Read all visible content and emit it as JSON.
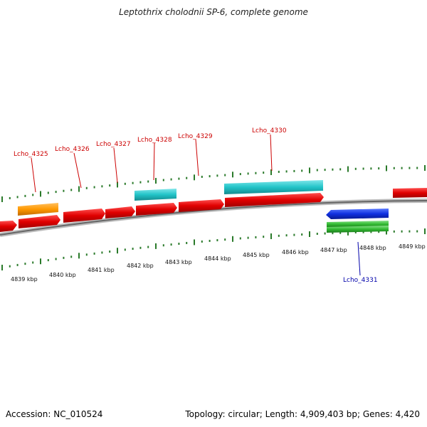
{
  "title": "Leptothrix cholodnii SP-6, complete genome",
  "footer": {
    "accession": "Accession: NC_010524",
    "summary": "Topology: circular; Length: 4,909,403 bp; Genes: 4,420"
  },
  "colors": {
    "cds_red": "#e00000",
    "cds_orange": "#ff9900",
    "cds_cyan": "#22c4c8",
    "cds_blue": "#1030e0",
    "cds_green": "#33bb33",
    "backbone": "#888888",
    "ticks": "#2a7a2a"
  },
  "scale_labels": [
    "4839 kbp",
    "4840 kbp",
    "4841 kbp",
    "4842 kbp",
    "4843 kbp",
    "4844 kbp",
    "4845 kbp",
    "4846 kbp",
    "4847 kbp",
    "4848 kbp",
    "4849 kbp"
  ],
  "gene_labels": [
    {
      "id": "lcho_4325",
      "text": "Lcho_4325"
    },
    {
      "id": "lcho_4326",
      "text": "Lcho_4326"
    },
    {
      "id": "lcho_4327",
      "text": "Lcho_4327"
    },
    {
      "id": "lcho_4328",
      "text": "Lcho_4328"
    },
    {
      "id": "lcho_4329",
      "text": "Lcho_4329"
    },
    {
      "id": "lcho_4330",
      "text": "Lcho_4330"
    },
    {
      "id": "lcho_4331",
      "text": "Lcho_4331"
    }
  ]
}
